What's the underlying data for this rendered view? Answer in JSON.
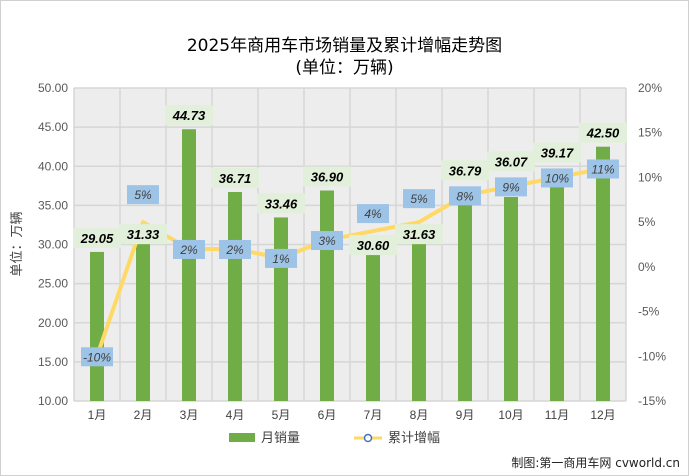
{
  "chart_data": {
    "type": "bar+line",
    "title": "2025年商用车市场销量及累计增幅走势图",
    "subtitle": "(单位：万辆)",
    "ylabel": "单位：万辆",
    "categories": [
      "1月",
      "2月",
      "3月",
      "4月",
      "5月",
      "6月",
      "7月",
      "8月",
      "9月",
      "10月",
      "11月",
      "12月"
    ],
    "series": [
      {
        "name": "月销量",
        "type": "bar",
        "axis": "left",
        "color": "#70ad47",
        "values": [
          29.05,
          31.33,
          44.73,
          36.71,
          33.46,
          36.9,
          30.6,
          31.63,
          36.79,
          36.07,
          39.17,
          42.5
        ],
        "labels": [
          "29.05",
          "31.33",
          "44.73",
          "36.71",
          "33.46",
          "36.90",
          "30.60",
          "31.63",
          "36.79",
          "36.07",
          "39.17",
          "42.50"
        ]
      },
      {
        "name": "累计增幅",
        "type": "line",
        "axis": "right",
        "color": "#ffd966",
        "values": [
          -10,
          5,
          2,
          2,
          1,
          3,
          4,
          5,
          8,
          9,
          10,
          11
        ],
        "labels": [
          "-10%",
          "5%",
          "2%",
          "2%",
          "1%",
          "3%",
          "4%",
          "5%",
          "8%",
          "9%",
          "10%",
          "11%"
        ]
      }
    ],
    "left_axis": {
      "ylim": [
        10,
        50
      ],
      "ticks": [
        "10.00",
        "15.00",
        "20.00",
        "25.00",
        "30.00",
        "35.00",
        "40.00",
        "45.00",
        "50.00"
      ]
    },
    "right_axis": {
      "ylim": [
        -15,
        20
      ],
      "ticks": [
        "-15%",
        "-10%",
        "-5%",
        "0%",
        "5%",
        "10%",
        "15%",
        "20%"
      ]
    },
    "grid": true,
    "legend": "bottom"
  },
  "credit": "制图:第一商用车网 cvworld.cn"
}
